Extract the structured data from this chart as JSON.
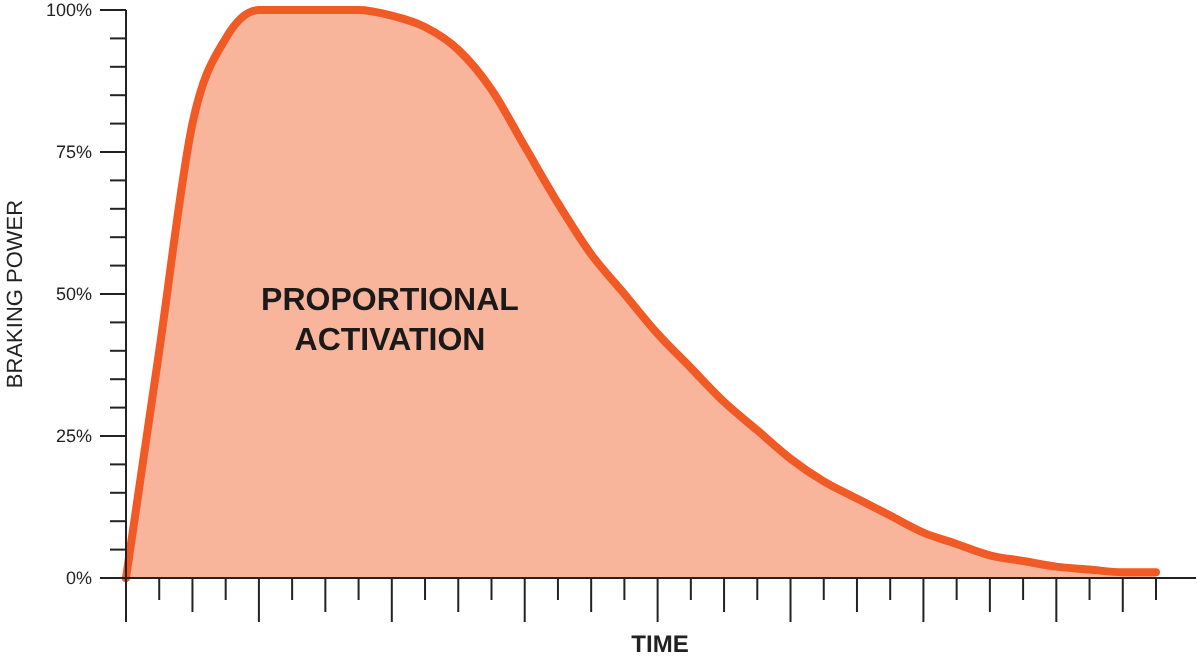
{
  "chart_data": {
    "type": "area",
    "xlabel": "TIME",
    "ylabel": "BRAKING POWER",
    "categories": [
      null,
      null,
      null,
      null,
      null,
      null,
      null,
      null,
      null,
      null,
      null,
      null,
      null,
      null,
      null,
      null,
      null,
      null,
      null,
      null,
      null,
      null,
      null,
      null,
      null,
      null,
      null,
      null,
      null,
      null,
      null,
      null
    ],
    "series": [
      {
        "color": "#f15a24",
        "values": [
          0,
          40,
          80,
          95,
          100,
          100,
          100,
          100,
          99,
          97,
          93,
          86,
          76,
          66,
          57,
          50,
          43,
          37,
          31,
          26,
          21,
          17,
          14,
          11,
          8,
          6,
          4,
          3,
          2,
          1.5,
          1,
          1
        ]
      }
    ],
    "ylim": [
      0,
      100
    ],
    "yticks": [
      {
        "value": 0,
        "label": "0%"
      },
      {
        "value": 5,
        "label": null
      },
      {
        "value": 10,
        "label": null
      },
      {
        "value": 15,
        "label": null
      },
      {
        "value": 20,
        "label": null
      },
      {
        "value": 25,
        "label": "25%"
      },
      {
        "value": 30,
        "label": null
      },
      {
        "value": 35,
        "label": null
      },
      {
        "value": 40,
        "label": null
      },
      {
        "value": 45,
        "label": null
      },
      {
        "value": 50,
        "label": "50%"
      },
      {
        "value": 55,
        "label": null
      },
      {
        "value": 60,
        "label": null
      },
      {
        "value": 65,
        "label": null
      },
      {
        "value": 70,
        "label": null
      },
      {
        "value": 75,
        "label": "75%"
      },
      {
        "value": 80,
        "label": null
      },
      {
        "value": 85,
        "label": null
      },
      {
        "value": 90,
        "label": null
      },
      {
        "value": 95,
        "label": null
      },
      {
        "value": 100,
        "label": "100%"
      }
    ],
    "annotations": [
      "PROPORTIONAL ACTIVATION"
    ],
    "grid": false
  }
}
